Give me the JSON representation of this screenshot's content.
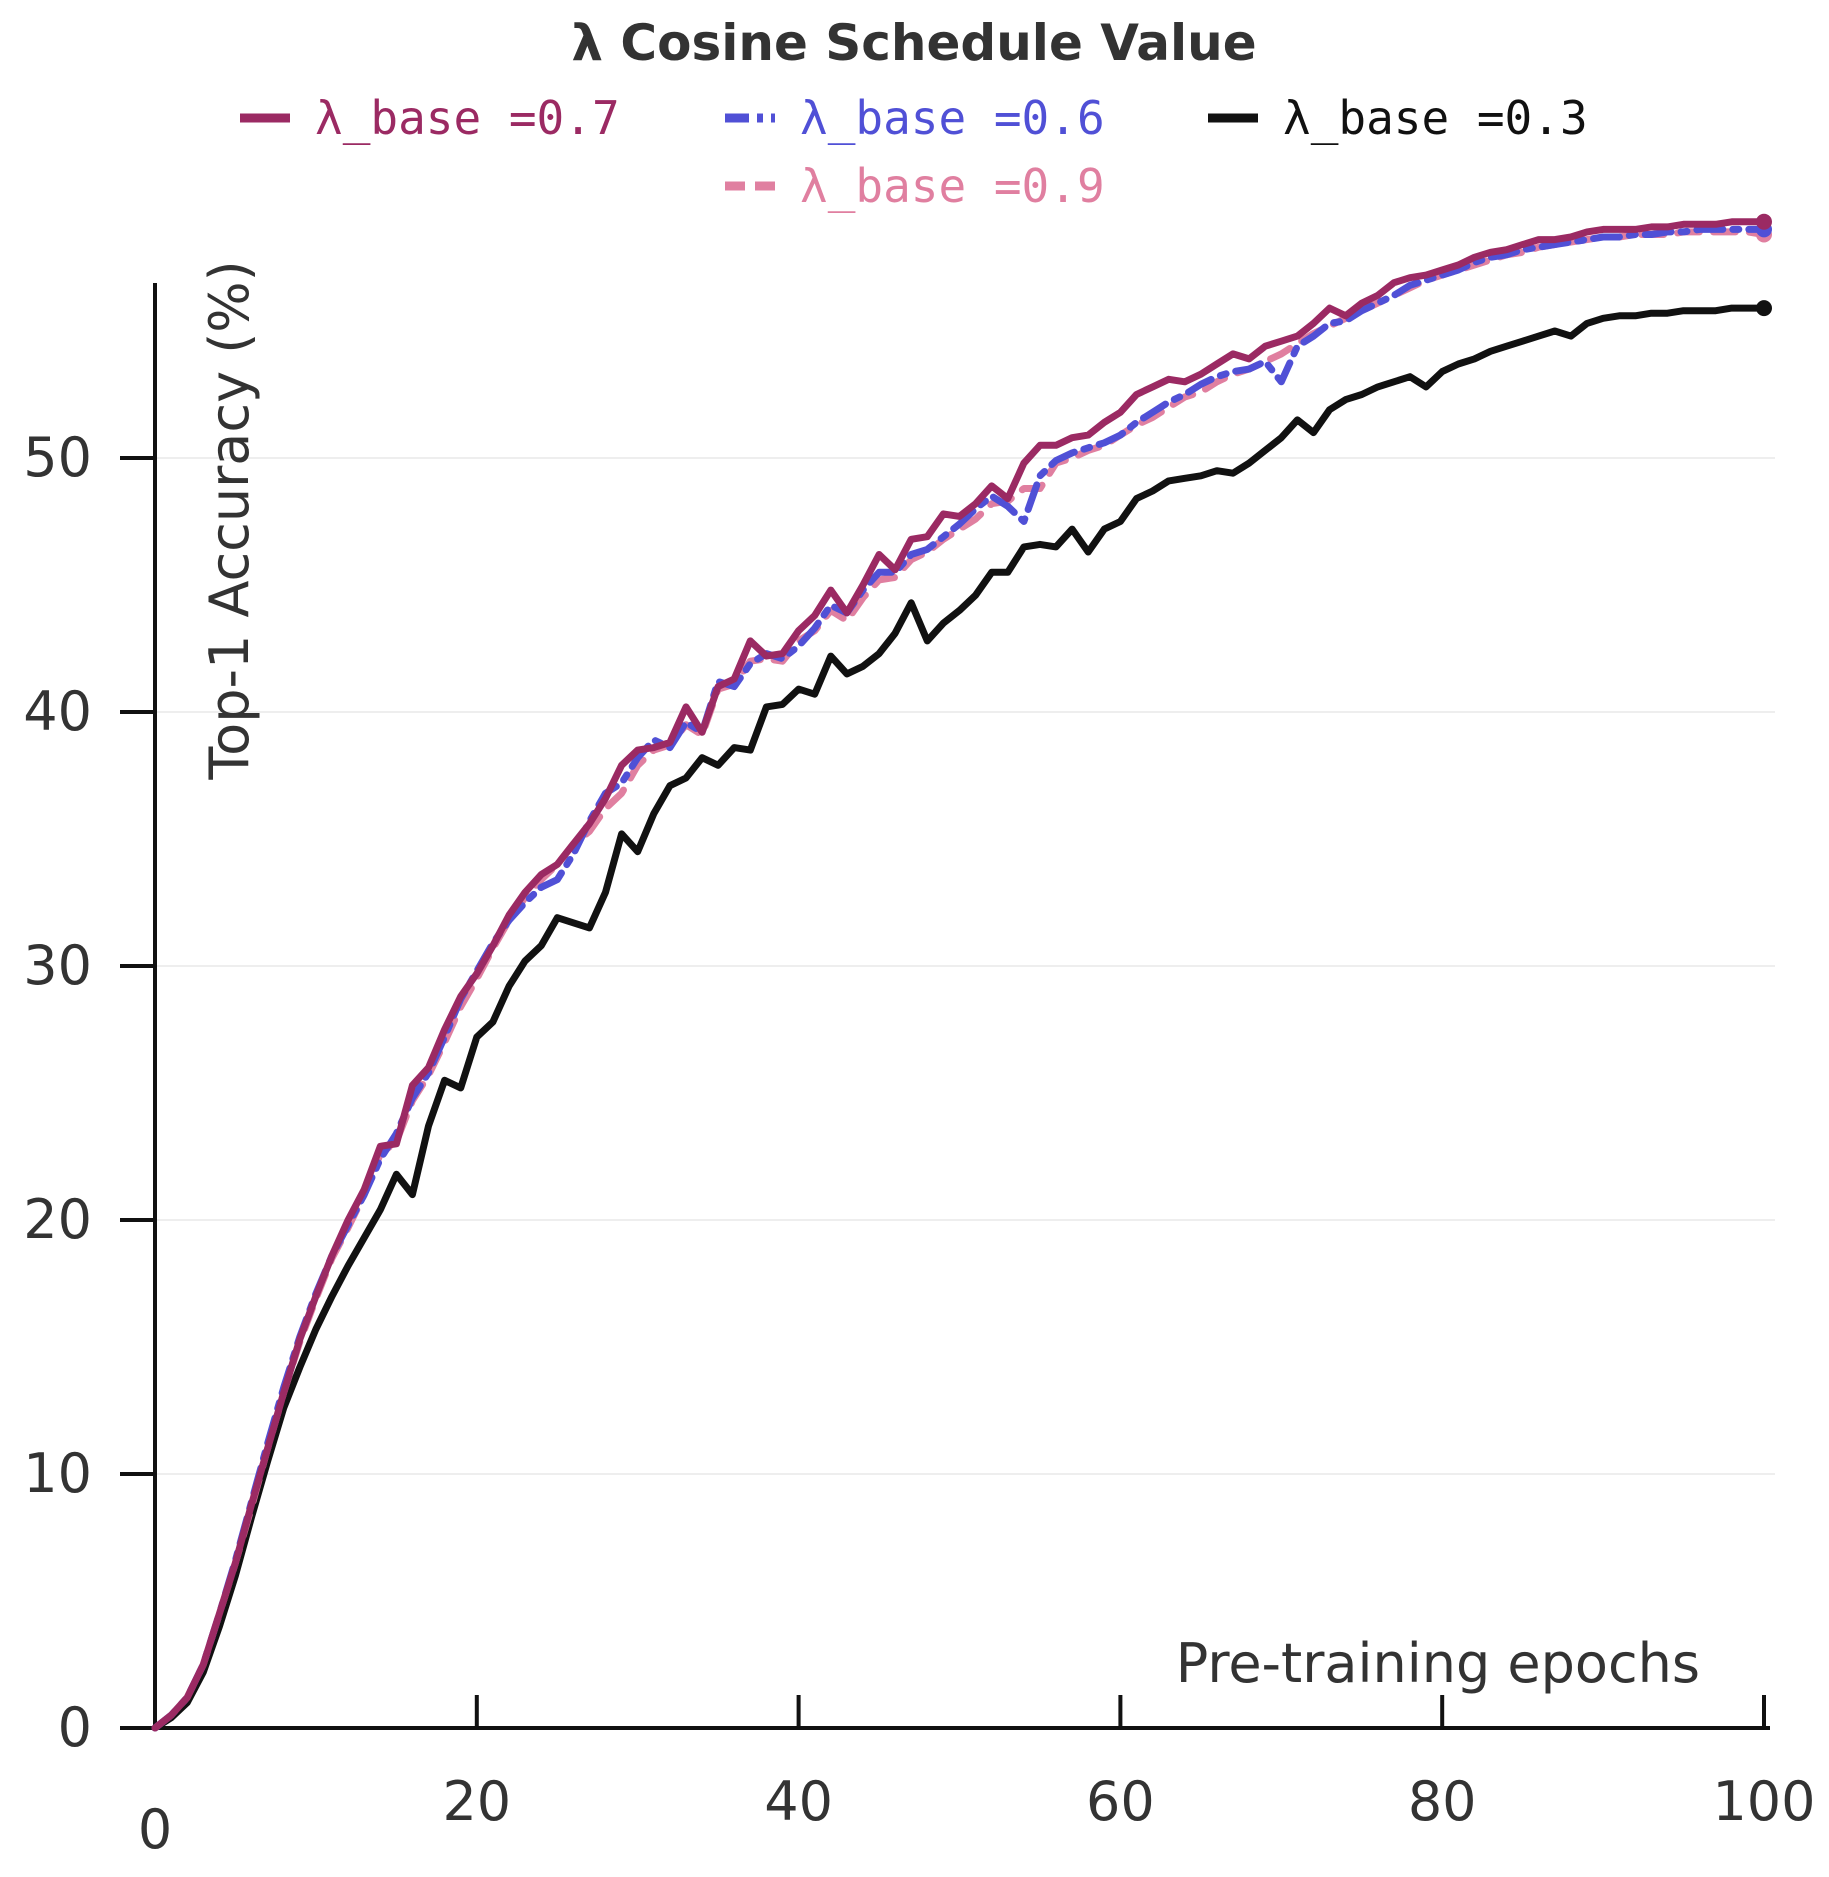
{
  "chart_data": {
    "type": "line",
    "title": "λ Cosine Schedule Value",
    "xlabel": "Pre-training epochs",
    "ylabel": "Top-1 Accuracy (%)",
    "xlim": [
      0,
      100
    ],
    "ylim": [
      0,
      57
    ],
    "x_ticks": [
      0,
      20,
      40,
      60,
      80,
      100
    ],
    "y_ticks": [
      0,
      10,
      20,
      30,
      40,
      50
    ],
    "grid": "horizontal",
    "legend_position": "top",
    "x": [
      0,
      1,
      2,
      3,
      4,
      5,
      6,
      7,
      8,
      9,
      10,
      11,
      12,
      13,
      14,
      15,
      16,
      17,
      18,
      19,
      20,
      21,
      22,
      23,
      24,
      25,
      26,
      27,
      28,
      29,
      30,
      31,
      32,
      33,
      34,
      35,
      36,
      37,
      38,
      39,
      40,
      41,
      42,
      43,
      44,
      45,
      46,
      47,
      48,
      49,
      50,
      51,
      52,
      53,
      54,
      55,
      56,
      57,
      58,
      59,
      60,
      61,
      62,
      63,
      64,
      65,
      66,
      67,
      68,
      69,
      70,
      71,
      72,
      73,
      74,
      75,
      76,
      77,
      78,
      79,
      80,
      81,
      82,
      83,
      84,
      85,
      86,
      87,
      88,
      89,
      90,
      91,
      92,
      93,
      94,
      95,
      96,
      97,
      98,
      99,
      100
    ],
    "series": [
      {
        "name": "λ_base =0.7",
        "color": "#9b2a63",
        "dash": "solid",
        "values": [
          0.0,
          0.5,
          1.2,
          2.5,
          4.5,
          6.5,
          8.8,
          11.0,
          13.2,
          15.3,
          17.0,
          18.6,
          20.0,
          21.2,
          22.9,
          23.0,
          25.3,
          26.0,
          27.5,
          28.8,
          29.7,
          30.8,
          32.0,
          32.9,
          33.6,
          34.0,
          34.8,
          35.6,
          36.6,
          37.9,
          38.5,
          38.6,
          38.8,
          40.2,
          39.2,
          41.0,
          41.3,
          42.8,
          42.2,
          42.3,
          43.2,
          43.8,
          44.8,
          43.9,
          45.0,
          46.2,
          45.6,
          46.8,
          46.9,
          47.8,
          47.7,
          48.2,
          48.9,
          48.4,
          49.8,
          50.5,
          50.5,
          50.8,
          50.9,
          51.4,
          51.8,
          52.5,
          52.8,
          53.1,
          53.0,
          53.3,
          53.7,
          54.1,
          53.9,
          54.4,
          54.6,
          54.8,
          55.3,
          55.9,
          55.6,
          56.1,
          56.4,
          56.9,
          57.1,
          57.2,
          57.4,
          57.6,
          57.9,
          58.1,
          58.2,
          58.4,
          58.6,
          58.6,
          58.7,
          58.9,
          59.0,
          59.0,
          59.0,
          59.1,
          59.1,
          59.2,
          59.2,
          59.2,
          59.3,
          59.3,
          59.3
        ]
      },
      {
        "name": "λ_base =0.6",
        "color": "#5050d6",
        "dash": "dashdot",
        "values": [
          0.0,
          0.5,
          1.2,
          2.5,
          4.5,
          6.6,
          8.9,
          11.2,
          13.4,
          15.4,
          17.1,
          18.6,
          19.8,
          21.0,
          22.4,
          23.4,
          24.8,
          25.8,
          27.2,
          28.7,
          29.8,
          30.9,
          31.8,
          32.5,
          33.1,
          33.4,
          34.4,
          35.7,
          36.8,
          37.2,
          38.2,
          38.9,
          38.6,
          39.6,
          39.2,
          41.2,
          41.0,
          41.9,
          42.3,
          42.1,
          42.6,
          43.3,
          44.2,
          43.9,
          44.8,
          45.5,
          45.5,
          46.2,
          46.4,
          46.9,
          47.4,
          48.0,
          48.5,
          48.1,
          47.5,
          49.3,
          49.9,
          50.2,
          50.4,
          50.6,
          50.9,
          51.4,
          51.8,
          52.2,
          52.5,
          52.9,
          53.2,
          53.4,
          53.5,
          53.8,
          53.0,
          54.4,
          54.8,
          55.3,
          55.4,
          55.8,
          56.1,
          56.4,
          56.8,
          57.0,
          57.2,
          57.4,
          57.7,
          57.9,
          58.0,
          58.2,
          58.3,
          58.4,
          58.5,
          58.6,
          58.7,
          58.7,
          58.8,
          58.8,
          58.9,
          58.9,
          59.0,
          59.0,
          59.0,
          59.0,
          59.0
        ]
      },
      {
        "name": "λ_base =0.9",
        "color": "#e07fa0",
        "dash": "dash",
        "values": [
          0.0,
          0.5,
          1.2,
          2.5,
          4.5,
          6.5,
          8.7,
          11.0,
          13.2,
          15.2,
          16.9,
          18.5,
          19.7,
          21.0,
          22.6,
          23.1,
          24.7,
          25.7,
          27.0,
          28.4,
          29.5,
          30.7,
          31.8,
          32.7,
          33.4,
          34.0,
          34.8,
          35.3,
          36.2,
          36.8,
          37.9,
          38.5,
          38.7,
          39.5,
          39.1,
          40.9,
          41.1,
          42.0,
          42.1,
          42.0,
          42.8,
          43.2,
          44.0,
          43.6,
          44.5,
          45.2,
          45.3,
          46.0,
          46.3,
          46.8,
          47.2,
          47.6,
          48.2,
          48.3,
          48.8,
          48.8,
          49.8,
          50.0,
          50.3,
          50.5,
          50.9,
          51.3,
          51.6,
          52.0,
          52.4,
          52.6,
          53.0,
          53.3,
          53.5,
          53.8,
          54.1,
          54.5,
          54.9,
          55.2,
          55.5,
          55.8,
          56.1,
          56.4,
          56.7,
          57.0,
          57.2,
          57.4,
          57.6,
          57.8,
          58.0,
          58.1,
          58.3,
          58.4,
          58.5,
          58.6,
          58.7,
          58.7,
          58.8,
          58.8,
          58.8,
          58.9,
          58.9,
          58.9,
          58.9,
          58.9,
          58.8
        ]
      },
      {
        "name": "λ_base =0.3",
        "color": "#111111",
        "dash": "solid",
        "values": [
          0.0,
          0.4,
          1.0,
          2.2,
          4.0,
          6.0,
          8.3,
          10.5,
          12.6,
          14.2,
          15.7,
          17.0,
          18.2,
          19.3,
          20.4,
          21.8,
          21.0,
          23.7,
          25.5,
          25.2,
          27.2,
          27.8,
          29.2,
          30.2,
          30.8,
          31.9,
          31.7,
          31.5,
          32.9,
          35.2,
          34.5,
          36.0,
          37.1,
          37.4,
          38.2,
          37.9,
          38.6,
          38.5,
          40.2,
          40.3,
          40.9,
          40.7,
          42.2,
          41.5,
          41.8,
          42.3,
          43.1,
          44.3,
          42.8,
          43.5,
          44.0,
          44.6,
          45.5,
          45.5,
          46.5,
          46.6,
          46.5,
          47.2,
          46.3,
          47.2,
          47.5,
          48.4,
          48.7,
          49.1,
          49.2,
          49.3,
          49.5,
          49.4,
          49.8,
          50.3,
          50.8,
          51.5,
          51.0,
          51.9,
          52.3,
          52.5,
          52.8,
          53.0,
          53.2,
          52.8,
          53.4,
          53.7,
          53.9,
          54.2,
          54.4,
          54.6,
          54.8,
          55.0,
          54.8,
          55.3,
          55.5,
          55.6,
          55.6,
          55.7,
          55.7,
          55.8,
          55.8,
          55.8,
          55.9,
          55.9,
          55.9
        ]
      }
    ]
  }
}
